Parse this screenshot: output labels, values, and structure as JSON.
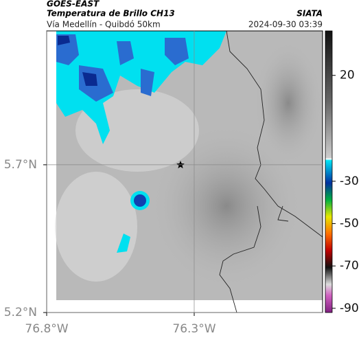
{
  "header": {
    "source": "GOES-EAST",
    "title": "Temperatura de Brillo CH13",
    "agency": "SIATA",
    "subtitle": "Vía Medellín - Quibdó 50km",
    "datetime": "2024-09-30 03:39"
  },
  "map": {
    "xlim": [
      -76.8,
      -75.865
    ],
    "ylim": [
      5.2,
      6.153
    ],
    "xticks": [
      {
        "value": -76.8,
        "label": "76.8°W"
      },
      {
        "value": -76.3,
        "label": "76.3°W"
      }
    ],
    "yticks": [
      {
        "value": 5.7,
        "label": "5.7°N"
      },
      {
        "value": 5.2,
        "label": "5.2°N"
      }
    ]
  },
  "colorbar": {
    "lim": [
      -92,
      41
    ],
    "ticks": [
      20,
      -30,
      -50,
      -70,
      -90
    ]
  }
}
